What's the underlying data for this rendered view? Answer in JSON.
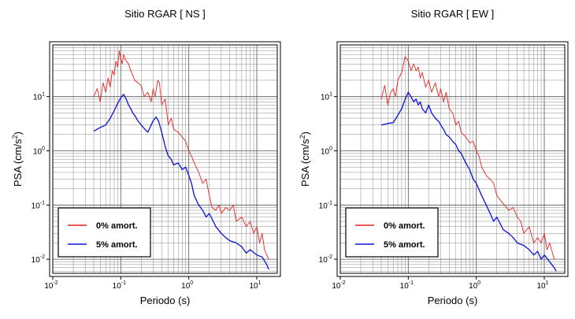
{
  "chart_data": [
    {
      "type": "line",
      "title": "Sitio RGAR [ NS ]",
      "xlabel": "Periodo (s)",
      "ylabel_main": "PSA (cm/s",
      "ylabel_sup": "2",
      "ylabel_end": ")",
      "xscale": "log",
      "yscale": "log",
      "xlim": [
        0.01,
        20
      ],
      "ylim": [
        0.0055,
        90
      ],
      "grid": true,
      "legend_placement": "bottom-left",
      "x_ticks": [
        {
          "base": "10",
          "exp": "-2"
        },
        {
          "base": "10",
          "exp": "-1"
        },
        {
          "base": "10",
          "exp": "0"
        },
        {
          "base": "10",
          "exp": "1"
        }
      ],
      "y_ticks": [
        {
          "base": "10",
          "exp": "-2"
        },
        {
          "base": "10",
          "exp": "-1"
        },
        {
          "base": "10",
          "exp": "0"
        },
        {
          "base": "10",
          "exp": "1"
        }
      ],
      "series": [
        {
          "name": "0% amort.",
          "color": "#e8231f",
          "x": [
            0.04,
            0.045,
            0.05,
            0.055,
            0.06,
            0.065,
            0.07,
            0.075,
            0.08,
            0.085,
            0.09,
            0.095,
            0.1,
            0.105,
            0.11,
            0.12,
            0.13,
            0.14,
            0.15,
            0.16,
            0.18,
            0.2,
            0.22,
            0.25,
            0.28,
            0.3,
            0.32,
            0.35,
            0.37,
            0.4,
            0.45,
            0.5,
            0.55,
            0.6,
            0.7,
            0.8,
            0.9,
            1.0,
            1.1,
            1.2,
            1.4,
            1.6,
            1.8,
            2.0,
            2.2,
            2.5,
            2.8,
            3.0,
            3.5,
            4.0,
            4.5,
            5.0,
            6.0,
            7.0,
            8.0,
            9.0,
            10.0,
            11.0,
            12.0,
            13.0,
            14.0,
            15.0
          ],
          "y": [
            10,
            14,
            8,
            18,
            12,
            22,
            15,
            30,
            25,
            45,
            35,
            70,
            50,
            40,
            60,
            45,
            40,
            30,
            25,
            20,
            18,
            16,
            10,
            12,
            8,
            14,
            10,
            20,
            18,
            7,
            9,
            3,
            4,
            2.5,
            2.2,
            1.8,
            1.5,
            1.0,
            0.8,
            0.6,
            0.4,
            0.25,
            0.3,
            0.15,
            0.09,
            0.08,
            0.1,
            0.07,
            0.09,
            0.08,
            0.1,
            0.05,
            0.06,
            0.04,
            0.05,
            0.03,
            0.04,
            0.02,
            0.03,
            0.015,
            0.012,
            0.01
          ]
        },
        {
          "name": "5% amort.",
          "color": "#0a12d6",
          "x": [
            0.04,
            0.05,
            0.06,
            0.07,
            0.08,
            0.09,
            0.1,
            0.11,
            0.12,
            0.13,
            0.14,
            0.15,
            0.16,
            0.18,
            0.2,
            0.22,
            0.25,
            0.28,
            0.3,
            0.33,
            0.36,
            0.4,
            0.45,
            0.5,
            0.55,
            0.6,
            0.7,
            0.8,
            0.9,
            1.0,
            1.1,
            1.2,
            1.4,
            1.6,
            1.8,
            2.0,
            2.5,
            3.0,
            3.5,
            4.0,
            5.0,
            6.0,
            7.0,
            8.0,
            10.0,
            12.0,
            14.0,
            15.0
          ],
          "y": [
            2.3,
            2.7,
            3.0,
            4.0,
            5.5,
            7.5,
            9.5,
            11,
            9,
            7,
            6,
            5,
            4.5,
            3.5,
            3.0,
            2.6,
            2.2,
            3.0,
            3.6,
            4.2,
            3.5,
            2.2,
            1.2,
            0.8,
            0.7,
            0.55,
            0.6,
            0.45,
            0.5,
            0.35,
            0.25,
            0.15,
            0.1,
            0.08,
            0.06,
            0.07,
            0.04,
            0.03,
            0.025,
            0.022,
            0.02,
            0.017,
            0.013,
            0.015,
            0.012,
            0.011,
            0.008,
            0.0065
          ]
        }
      ]
    },
    {
      "type": "line",
      "title": "Sitio RGAR [ EW ]",
      "xlabel": "Periodo (s)",
      "ylabel_main": "PSA (cm/s",
      "ylabel_sup": "2",
      "ylabel_end": ")",
      "xscale": "log",
      "yscale": "log",
      "xlim": [
        0.01,
        20
      ],
      "ylim": [
        0.0055,
        90
      ],
      "grid": true,
      "legend_placement": "bottom-left",
      "x_ticks": [
        {
          "base": "10",
          "exp": "-2"
        },
        {
          "base": "10",
          "exp": "-1"
        },
        {
          "base": "10",
          "exp": "0"
        },
        {
          "base": "10",
          "exp": "1"
        }
      ],
      "y_ticks": [
        {
          "base": "10",
          "exp": "-2"
        },
        {
          "base": "10",
          "exp": "-1"
        },
        {
          "base": "10",
          "exp": "0"
        },
        {
          "base": "10",
          "exp": "1"
        }
      ],
      "series": [
        {
          "name": "0% amort.",
          "color": "#e8231f",
          "x": [
            0.04,
            0.045,
            0.05,
            0.055,
            0.06,
            0.065,
            0.07,
            0.08,
            0.09,
            0.1,
            0.11,
            0.12,
            0.13,
            0.14,
            0.15,
            0.16,
            0.18,
            0.2,
            0.22,
            0.25,
            0.28,
            0.3,
            0.33,
            0.36,
            0.4,
            0.45,
            0.5,
            0.55,
            0.6,
            0.7,
            0.8,
            0.9,
            1.0,
            1.1,
            1.2,
            1.4,
            1.6,
            1.8,
            2.0,
            2.3,
            2.6,
            3.0,
            3.5,
            4.0,
            4.5,
            5.0,
            6.0,
            7.0,
            8.0,
            9.0,
            10.0,
            11.0,
            12.0,
            14.0,
            15.0
          ],
          "y": [
            9,
            16,
            7,
            12,
            14,
            10,
            20,
            28,
            55,
            45,
            30,
            40,
            30,
            35,
            22,
            28,
            15,
            20,
            12,
            18,
            10,
            14,
            8,
            12,
            6,
            5,
            3,
            3.5,
            2.2,
            1.8,
            1.4,
            1.5,
            1.0,
            0.8,
            0.5,
            0.35,
            0.3,
            0.25,
            0.15,
            0.12,
            0.1,
            0.08,
            0.09,
            0.06,
            0.05,
            0.03,
            0.04,
            0.02,
            0.025,
            0.02,
            0.03,
            0.015,
            0.02,
            0.01,
            0.01
          ]
        },
        {
          "name": "5% amort.",
          "color": "#0a12d6",
          "x": [
            0.04,
            0.05,
            0.06,
            0.07,
            0.08,
            0.09,
            0.1,
            0.11,
            0.12,
            0.13,
            0.14,
            0.15,
            0.16,
            0.18,
            0.2,
            0.22,
            0.25,
            0.28,
            0.3,
            0.33,
            0.36,
            0.4,
            0.45,
            0.5,
            0.55,
            0.6,
            0.7,
            0.8,
            0.9,
            1.0,
            1.2,
            1.4,
            1.6,
            1.8,
            2.0,
            2.5,
            3.0,
            3.5,
            4.0,
            5.0,
            6.0,
            7.0,
            8.0,
            9.0,
            10.0,
            12.0,
            14.0,
            15.0
          ],
          "y": [
            3.0,
            3.2,
            3.3,
            4.5,
            6,
            9,
            12,
            10,
            8,
            9,
            7,
            8,
            6,
            5,
            7,
            5,
            4,
            3.5,
            3.0,
            2.5,
            2.0,
            1.8,
            1.5,
            1.3,
            1.0,
            0.9,
            0.6,
            0.45,
            0.3,
            0.25,
            0.15,
            0.1,
            0.07,
            0.05,
            0.06,
            0.035,
            0.03,
            0.025,
            0.02,
            0.018,
            0.015,
            0.012,
            0.014,
            0.01,
            0.012,
            0.009,
            0.007,
            0.006
          ]
        }
      ]
    }
  ]
}
